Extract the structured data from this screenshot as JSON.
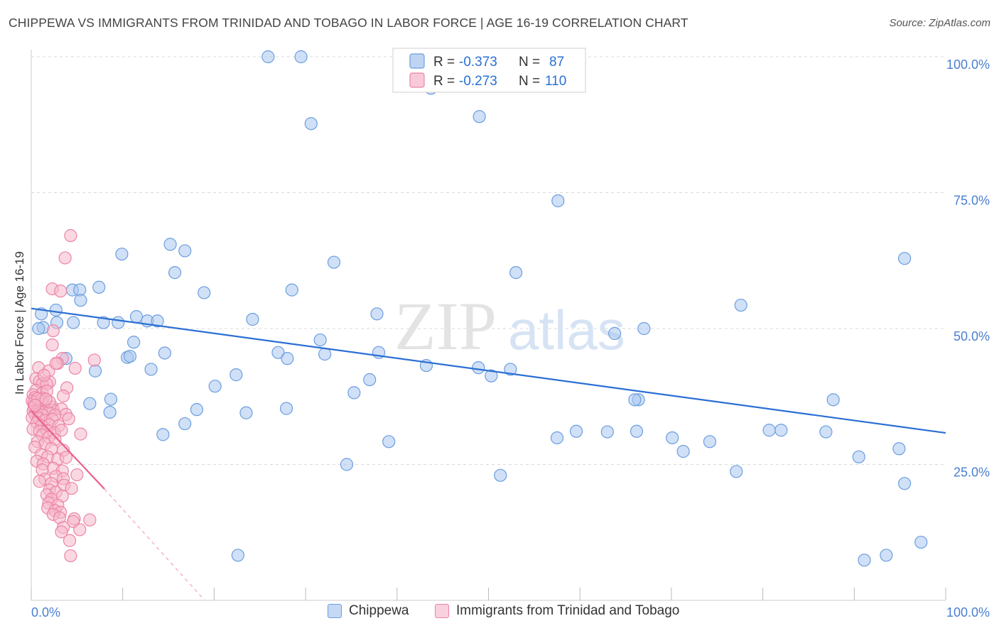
{
  "title": "CHIPPEWA VS IMMIGRANTS FROM TRINIDAD AND TOBAGO IN LABOR FORCE | AGE 16-19 CORRELATION CHART",
  "source": "Source: ZipAtlas.com",
  "watermark": {
    "zip": "ZIP",
    "atlas": "atlas"
  },
  "colors": {
    "blue_fill": "#a9c6ef",
    "blue_stroke": "#6b9ee0",
    "blue_line": "#2a6fd4",
    "pink_fill": "#f6b8cb",
    "pink_stroke": "#ec84a6",
    "pink_line": "#e8608a",
    "axis_label": "#4a7fd0",
    "grid": "#d9d9d9"
  },
  "legend": {
    "rows": [
      {
        "r_label": "R =",
        "r_value": "-0.373",
        "n_label": "N =",
        "n_value": "87",
        "color": "blue"
      },
      {
        "r_label": "R =",
        "r_value": "-0.273",
        "n_label": "N =",
        "n_value": "110",
        "color": "pink"
      }
    ]
  },
  "chart_data": {
    "type": "scatter",
    "title": "CHIPPEWA VS IMMIGRANTS FROM TRINIDAD AND TOBAGO IN LABOR FORCE | AGE 16-19 CORRELATION CHART",
    "xlabel": "",
    "ylabel": "In Labor Force | Age 16-19",
    "xlim": [
      0,
      100
    ],
    "ylim": [
      0,
      102
    ],
    "x_tick_labels": [
      "0.0%",
      "100.0%"
    ],
    "y_tick_values": [
      25,
      50,
      75,
      100
    ],
    "y_tick_labels": [
      "25.0%",
      "50.0%",
      "75.0%",
      "100.0%"
    ],
    "grid": true,
    "legend_position": "top-center",
    "series": [
      {
        "name": "Chippewa",
        "color": "blue",
        "trend": {
          "x": [
            0,
            100
          ],
          "y": [
            53.7,
            30.8
          ]
        },
        "points": [
          [
            25.9,
            100
          ],
          [
            29.5,
            100
          ],
          [
            43.7,
            94.2
          ],
          [
            30.6,
            87.7
          ],
          [
            49.0,
            89.0
          ],
          [
            57.6,
            73.5
          ],
          [
            95.5,
            62.9
          ],
          [
            9.9,
            63.7
          ],
          [
            15.2,
            65.5
          ],
          [
            16.8,
            64.3
          ],
          [
            15.7,
            60.3
          ],
          [
            33.1,
            62.2
          ],
          [
            53.0,
            60.3
          ],
          [
            1.1,
            52.7
          ],
          [
            2.8,
            51.1
          ],
          [
            1.3,
            50.2
          ],
          [
            0.8,
            50.0
          ],
          [
            4.5,
            57.1
          ],
          [
            5.3,
            57.1
          ],
          [
            3.8,
            44.5
          ],
          [
            7.4,
            57.6
          ],
          [
            5.4,
            55.2
          ],
          [
            2.7,
            53.4
          ],
          [
            4.6,
            51.1
          ],
          [
            7.9,
            51.1
          ],
          [
            9.5,
            51.1
          ],
          [
            11.5,
            52.2
          ],
          [
            12.7,
            51.4
          ],
          [
            13.8,
            51.4
          ],
          [
            11.2,
            47.5
          ],
          [
            14.6,
            45.5
          ],
          [
            18.9,
            56.6
          ],
          [
            28.5,
            57.1
          ],
          [
            24.2,
            51.7
          ],
          [
            31.6,
            47.9
          ],
          [
            32.1,
            45.3
          ],
          [
            27.0,
            45.6
          ],
          [
            28.0,
            44.5
          ],
          [
            10.5,
            44.7
          ],
          [
            10.8,
            44.9
          ],
          [
            13.1,
            42.5
          ],
          [
            7.0,
            42.2
          ],
          [
            20.1,
            39.4
          ],
          [
            22.4,
            41.5
          ],
          [
            37.8,
            52.7
          ],
          [
            38.0,
            45.6
          ],
          [
            43.2,
            43.2
          ],
          [
            37.0,
            40.6
          ],
          [
            48.9,
            42.8
          ],
          [
            50.3,
            41.3
          ],
          [
            52.4,
            42.5
          ],
          [
            63.8,
            49.1
          ],
          [
            67.0,
            50.0
          ],
          [
            77.6,
            54.3
          ],
          [
            8.7,
            37.0
          ],
          [
            6.4,
            36.2
          ],
          [
            8.6,
            34.6
          ],
          [
            18.1,
            35.1
          ],
          [
            23.5,
            34.5
          ],
          [
            27.9,
            35.3
          ],
          [
            16.8,
            32.5
          ],
          [
            14.4,
            30.5
          ],
          [
            35.3,
            38.2
          ],
          [
            66.4,
            36.9
          ],
          [
            66.0,
            36.9
          ],
          [
            87.7,
            36.9
          ],
          [
            59.6,
            31.1
          ],
          [
            63.0,
            31.0
          ],
          [
            66.2,
            31.1
          ],
          [
            80.7,
            31.3
          ],
          [
            82.0,
            31.3
          ],
          [
            86.9,
            31.0
          ],
          [
            39.1,
            29.2
          ],
          [
            71.3,
            27.4
          ],
          [
            74.2,
            29.2
          ],
          [
            94.9,
            27.9
          ],
          [
            90.5,
            26.4
          ],
          [
            77.1,
            23.7
          ],
          [
            34.5,
            25.0
          ],
          [
            95.5,
            21.5
          ],
          [
            51.3,
            23.0
          ],
          [
            22.6,
            8.3
          ],
          [
            91.1,
            7.4
          ],
          [
            93.5,
            8.3
          ],
          [
            97.3,
            10.7
          ],
          [
            70.1,
            29.9
          ],
          [
            57.5,
            29.9
          ]
        ]
      },
      {
        "name": "Immigrants from Trinidad and Tobago",
        "color": "pink",
        "trend": {
          "x": [
            0,
            8.0
          ],
          "y": [
            34.8,
            20.5
          ],
          "dashed_to": {
            "x": 23.5,
            "y": -8.5
          }
        },
        "points": [
          [
            4.3,
            67.1
          ],
          [
            3.7,
            63.0
          ],
          [
            2.3,
            57.3
          ],
          [
            3.2,
            56.9
          ],
          [
            2.4,
            49.6
          ],
          [
            2.3,
            47.0
          ],
          [
            3.4,
            44.5
          ],
          [
            6.9,
            44.2
          ],
          [
            2.9,
            43.6
          ],
          [
            0.8,
            42.8
          ],
          [
            4.8,
            42.7
          ],
          [
            1.9,
            42.2
          ],
          [
            0.5,
            40.8
          ],
          [
            0.9,
            40.3
          ],
          [
            2.0,
            40.2
          ],
          [
            1.2,
            39.8
          ],
          [
            1.7,
            39.8
          ],
          [
            3.9,
            39.1
          ],
          [
            0.5,
            38.6
          ],
          [
            1.2,
            38.1
          ],
          [
            1.7,
            38.5
          ],
          [
            0.2,
            37.8
          ],
          [
            0.4,
            37.3
          ],
          [
            1.3,
            37.2
          ],
          [
            3.5,
            37.6
          ],
          [
            0.1,
            36.7
          ],
          [
            0.3,
            36.4
          ],
          [
            0.6,
            36.0
          ],
          [
            1.3,
            36.2
          ],
          [
            2.3,
            35.6
          ],
          [
            0.3,
            35.5
          ],
          [
            0.8,
            35.2
          ],
          [
            1.6,
            35.0
          ],
          [
            2.4,
            35.0
          ],
          [
            3.3,
            35.2
          ],
          [
            0.2,
            34.8
          ],
          [
            0.5,
            34.6
          ],
          [
            1.0,
            34.6
          ],
          [
            1.9,
            34.6
          ],
          [
            0.4,
            34.2
          ],
          [
            1.2,
            34.1
          ],
          [
            2.6,
            34.1
          ],
          [
            3.8,
            34.2
          ],
          [
            0.1,
            33.6
          ],
          [
            0.8,
            33.5
          ],
          [
            1.5,
            33.1
          ],
          [
            2.3,
            33.3
          ],
          [
            4.1,
            33.4
          ],
          [
            0.6,
            32.7
          ],
          [
            1.1,
            32.1
          ],
          [
            2.0,
            32.3
          ],
          [
            3.0,
            32.1
          ],
          [
            0.2,
            31.5
          ],
          [
            0.9,
            31.1
          ],
          [
            1.7,
            31.2
          ],
          [
            2.5,
            30.8
          ],
          [
            3.3,
            31.3
          ],
          [
            5.4,
            30.6
          ],
          [
            1.2,
            30.4
          ],
          [
            1.9,
            30.0
          ],
          [
            2.6,
            29.6
          ],
          [
            0.7,
            29.2
          ],
          [
            1.5,
            28.8
          ],
          [
            0.4,
            28.2
          ],
          [
            2.2,
            27.9
          ],
          [
            3.5,
            27.6
          ],
          [
            1.1,
            26.8
          ],
          [
            1.8,
            26.4
          ],
          [
            2.9,
            26.0
          ],
          [
            3.8,
            26.3
          ],
          [
            0.6,
            25.6
          ],
          [
            1.3,
            25.1
          ],
          [
            2.4,
            24.3
          ],
          [
            1.2,
            24.0
          ],
          [
            3.4,
            23.8
          ],
          [
            5.0,
            23.1
          ],
          [
            2.7,
            22.8
          ],
          [
            3.5,
            22.4
          ],
          [
            1.5,
            22.3
          ],
          [
            0.9,
            21.9
          ],
          [
            2.2,
            21.5
          ],
          [
            3.6,
            21.2
          ],
          [
            4.4,
            20.6
          ],
          [
            2.0,
            20.3
          ],
          [
            2.7,
            19.9
          ],
          [
            3.4,
            19.2
          ],
          [
            1.7,
            19.4
          ],
          [
            2.2,
            18.6
          ],
          [
            1.9,
            17.9
          ],
          [
            2.9,
            17.5
          ],
          [
            1.8,
            17.0
          ],
          [
            2.6,
            16.5
          ],
          [
            3.2,
            16.2
          ],
          [
            2.4,
            15.8
          ],
          [
            3.1,
            15.2
          ],
          [
            4.7,
            15.0
          ],
          [
            6.4,
            14.8
          ],
          [
            4.6,
            14.5
          ],
          [
            3.5,
            13.4
          ],
          [
            5.3,
            13.0
          ],
          [
            3.3,
            12.6
          ],
          [
            4.2,
            11.0
          ],
          [
            4.3,
            8.2
          ],
          [
            1.1,
            36.9
          ],
          [
            2.0,
            36.5
          ],
          [
            0.7,
            37.1
          ],
          [
            1.6,
            37.0
          ],
          [
            1.4,
            41.4
          ],
          [
            2.7,
            43.6
          ],
          [
            0.4,
            35.9
          ]
        ]
      }
    ]
  },
  "bottom_legend": [
    {
      "label": "Chippewa",
      "color": "blue"
    },
    {
      "label": "Immigrants from Trinidad and Tobago",
      "color": "pink"
    }
  ]
}
